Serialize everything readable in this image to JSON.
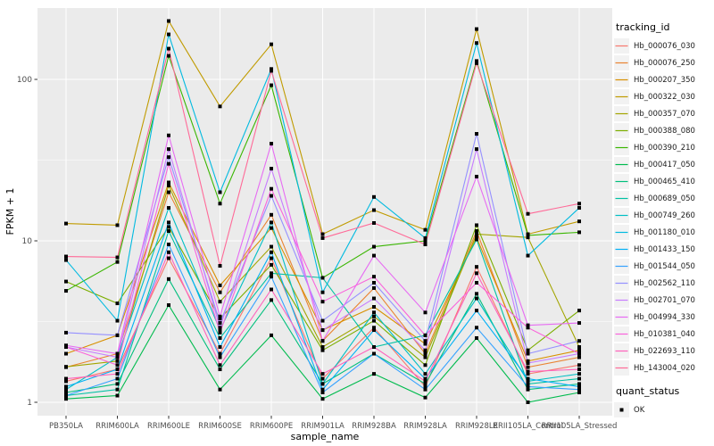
{
  "chart_data": {
    "type": "line",
    "title": "",
    "xlabel": "sample_name",
    "ylabel": "FPKM + 1",
    "y_scale": "log10",
    "y_ticks": [
      1,
      10,
      100
    ],
    "y_minor_ticks": [
      3.1623,
      31.623
    ],
    "ylim": [
      0.83,
      280
    ],
    "legend_title": "tracking_id",
    "legend2_title": "quant_status",
    "legend2_items": [
      {
        "label": "OK",
        "marker": "black-square"
      }
    ],
    "grid": "on",
    "legend_position": "right",
    "categories": [
      "PB350LA",
      "RRIM600LA",
      "RRIM600LE",
      "RRIM600SE",
      "RRIM600PE",
      "RRIM901LA",
      "RRIM928BA",
      "RRIM928LA",
      "RRIM928LE",
      "RRII105LA_Control",
      "RRII105LA_Stressed"
    ],
    "series": [
      {
        "name": "Hb_000076_030",
        "color": "#F8766D",
        "values": [
          1.35,
          1.6,
          7.8,
          2.0,
          7.8,
          1.4,
          2.9,
          1.25,
          6.9,
          1.5,
          1.7
        ]
      },
      {
        "name": "Hb_000076_250",
        "color": "#EA8331",
        "values": [
          1.65,
          2.0,
          20,
          4.8,
          14.5,
          2.4,
          5.1,
          2.0,
          11.5,
          1.65,
          1.9
        ]
      },
      {
        "name": "Hb_000207_350",
        "color": "#D89000",
        "values": [
          2.0,
          2.6,
          23,
          5.3,
          12,
          2.8,
          3.9,
          2.3,
          10.5,
          1.8,
          2.1
        ]
      },
      {
        "name": "Hb_000322_030",
        "color": "#C09B00",
        "values": [
          12.8,
          12.5,
          230,
          68,
          165,
          11,
          15.5,
          11.7,
          205,
          11,
          13.2
        ]
      },
      {
        "name": "Hb_000357_070",
        "color": "#A3A500",
        "values": [
          1.66,
          1.8,
          22,
          4.2,
          9.2,
          2.2,
          3.4,
          1.9,
          11,
          10.5,
          2.2
        ]
      },
      {
        "name": "Hb_000388_080",
        "color": "#7CAE00",
        "values": [
          5.6,
          4.1,
          12.2,
          3.3,
          7.1,
          2.1,
          3.2,
          1.7,
          12.5,
          2.1,
          3.7
        ]
      },
      {
        "name": "Hb_000390_210",
        "color": "#39B600",
        "values": [
          4.9,
          7.4,
          140,
          17,
          92,
          5.9,
          9.2,
          10,
          130,
          10.8,
          11.3
        ]
      },
      {
        "name": "Hb_000417_050",
        "color": "#00BB4E",
        "values": [
          1.05,
          1.1,
          4.0,
          1.2,
          2.6,
          1.05,
          1.5,
          1.07,
          2.5,
          1.0,
          1.15
        ]
      },
      {
        "name": "Hb_000465_410",
        "color": "#00BF7D",
        "values": [
          1.15,
          1.3,
          5.8,
          1.6,
          4.3,
          1.3,
          2.0,
          1.3,
          4.7,
          1.2,
          1.3
        ]
      },
      {
        "name": "Hb_000689_050",
        "color": "#00C1A3",
        "values": [
          1.1,
          1.2,
          11.5,
          2.5,
          6.3,
          5.9,
          2.2,
          2.6,
          10.2,
          1.3,
          1.4
        ]
      },
      {
        "name": "Hb_000749_260",
        "color": "#00BFC4",
        "values": [
          1.2,
          1.9,
          16,
          2.8,
          13,
          1.3,
          3.6,
          1.5,
          4.4,
          1.35,
          1.5
        ]
      },
      {
        "name": "Hb_001180_010",
        "color": "#00BAE0",
        "values": [
          7.6,
          3.2,
          190,
          20,
          116,
          4.8,
          18.7,
          10.4,
          168,
          8.1,
          16
        ]
      },
      {
        "name": "Hb_001433_150",
        "color": "#00B0F6",
        "values": [
          1.25,
          1.6,
          13,
          2.2,
          8.5,
          1.2,
          2.8,
          1.4,
          3.7,
          1.4,
          1.25
        ]
      },
      {
        "name": "Hb_001544_050",
        "color": "#35A2FF",
        "values": [
          1.1,
          1.4,
          9.5,
          1.9,
          6.0,
          1.15,
          2.0,
          1.2,
          2.9,
          1.25,
          1.2
        ]
      },
      {
        "name": "Hb_002562_110",
        "color": "#9590FF",
        "values": [
          2.7,
          2.6,
          33,
          3.1,
          19,
          3.2,
          5.5,
          2.4,
          46,
          2.0,
          2.4
        ]
      },
      {
        "name": "Hb_002701_070",
        "color": "#C77CFF",
        "values": [
          2.2,
          1.9,
          37,
          2.9,
          28,
          2.8,
          4.4,
          2.1,
          37,
          1.75,
          2.0
        ]
      },
      {
        "name": "Hb_004994_330",
        "color": "#E76BF3",
        "values": [
          2.25,
          2.0,
          45,
          3.4,
          40,
          2.4,
          8.1,
          3.6,
          25,
          3.0,
          3.1
        ]
      },
      {
        "name": "Hb_010381_040",
        "color": "#FA62DB",
        "values": [
          2.2,
          1.7,
          30,
          2.7,
          21,
          4.2,
          6.0,
          2.6,
          5.5,
          2.9,
          2.0
        ]
      },
      {
        "name": "Hb_022693_110",
        "color": "#FF62BC",
        "values": [
          1.4,
          1.5,
          8.5,
          1.7,
          5.0,
          1.5,
          2.2,
          1.35,
          6.3,
          1.55,
          1.6
        ]
      },
      {
        "name": "Hb_143004_020",
        "color": "#FF6A98",
        "values": [
          8.0,
          7.9,
          155,
          7.0,
          113,
          10.4,
          12.9,
          9.5,
          126,
          14.7,
          17
        ]
      }
    ],
    "colors": {
      "panel_bg": "#EBEBEB",
      "grid": "#FFFFFF",
      "tick_text": "#4D4D4D",
      "tick_mark": "#333333",
      "axis_title": "#000000",
      "point": "#000000",
      "legend_key_bg": "#F2F2F2"
    }
  }
}
